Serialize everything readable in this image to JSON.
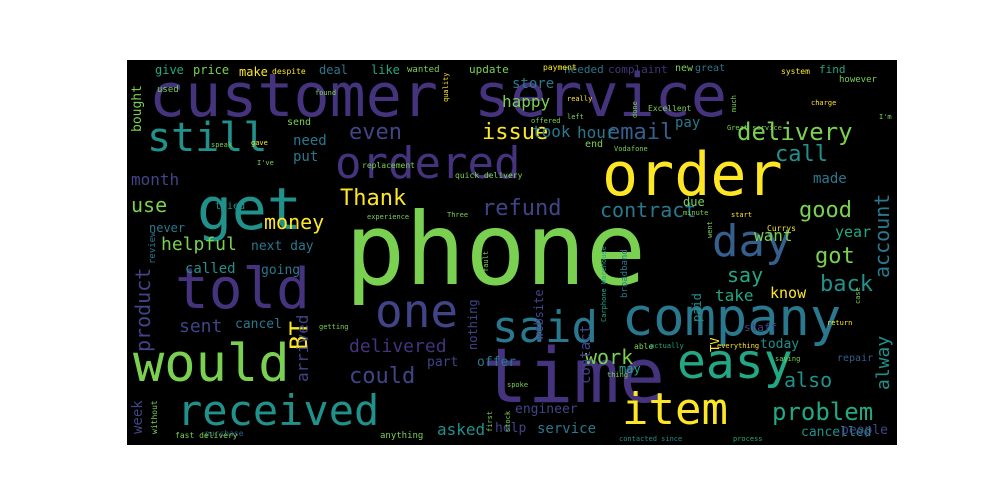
{
  "colors": {
    "background": "#000000",
    "page": "#ffffff",
    "purple": "#46337e",
    "indigo": "#414487",
    "blue": "#355f8d",
    "teal": "#2a788e",
    "green_teal": "#21918c",
    "green": "#22a884",
    "light_green": "#44bf70",
    "lime": "#7ad151",
    "yellow": "#fde725"
  },
  "words": {
    "customer_service": "customer service",
    "phone": "phone",
    "time": "time",
    "order": "order",
    "ordered": "ordered",
    "would": "would",
    "told": "told",
    "company": "company",
    "get": "get",
    "still": "still",
    "received": "received",
    "said": "said",
    "easy": "easy",
    "item": "item",
    "one": "one",
    "day": "day",
    "delivery": "delivery",
    "problem": "problem",
    "email": "email",
    "issue": "issue",
    "even": "even",
    "call": "call",
    "good": "good",
    "got": "got",
    "back": "back",
    "also": "also",
    "refund": "refund",
    "contract": "contract",
    "money": "money",
    "Thank": "Thank",
    "use": "use",
    "month": "month",
    "helpful": "helpful",
    "next_day": "next day",
    "product": "product",
    "sent": "sent",
    "BT": "BT",
    "delivered": "delivered",
    "could": "could",
    "work": "work",
    "say": "say",
    "asked": "asked",
    "service": "service",
    "help": "help",
    "hour": "hour",
    "took": "took",
    "store": "store",
    "happy": "happy",
    "account": "account",
    "want": "want",
    "made": "made",
    "year": "year",
    "take": "take",
    "know": "know",
    "cancelled": "cancelled",
    "people": "people",
    "week": "week",
    "arrived": "arrived",
    "contact": "contact",
    "website": "website",
    "called": "called",
    "going": "going",
    "cancel": "cancel",
    "part": "part",
    "offer": "offer",
    "engineer": "engineer",
    "need": "need",
    "put": "put",
    "pay": "pay",
    "always": "alway",
    "today": "today",
    "TV": "TV",
    "bought": "bought",
    "give": "give",
    "price": "price",
    "make": "make",
    "deal": "deal",
    "like": "like",
    "update": "update",
    "needed": "needed",
    "complaint": "complaint",
    "new": "new",
    "great": "great",
    "find": "find",
    "however": "however",
    "never": "never",
    "review": "review",
    "tried": "tried",
    "send": "send",
    "end": "end",
    "due": "due",
    "paid": "paid",
    "may": "may",
    "nothing": "nothing",
    "staff": "staff",
    "repair": "repair",
    "broadband": "broadband",
    "Excellent": "Excellent",
    "replacement": "replacement",
    "quick_delivery": "quick delivery",
    "purchase": "purchase",
    "fast_delivery": "fast delivery",
    "anything": "anything",
    "wanted": "wanted",
    "payment": "payment",
    "used": "used",
    "really": "really",
    "despite": "despite",
    "system": "system",
    "charge": "charge",
    "experience": "experience",
    "Currys": "Currys",
    "minute": "minute",
    "start": "start",
    "Great_service": "Great service",
    "Vodafone": "Vodafone",
    "without": "without",
    "first": "first",
    "quality": "quality",
    "spoke": "spoke",
    "told_me": "told me",
    "able": "able",
    "actually": "actually",
    "everything": "everything",
    "saying": "saying",
    "return": "return",
    "done": "done",
    "much": "much",
    "went": "went",
    "case": "case",
    "thing": "thing",
    "fault": "fault",
    "left": "left",
    "stock": "stock",
    "getting": "getting",
    "sale": "sale",
    "another": "another",
    "item_arrived": "item arrived",
    "received_item": "received item",
    "line": "line",
    "number": "number",
    "old": "old",
    "card": "card",
    "shop": "shop",
    "Three": "Three",
    "let": "let",
    "bill": "bill",
    "see": "see",
    "go": "go",
    "sure": "sure",
    "back_phone": "back phone",
    "ordered_phone": "ordered phone",
    "customer_care": "customer care",
    "manager": "manager",
    "team": "team",
    "mobile": "mobile",
    "check": "check",
    "speak": "speak",
    "gave": "gave",
    "found": "found",
    "I_ve": "I've",
    "I_m": "I'm",
    "sorted": "sorted",
    "contacted_since": "contacted since",
    "reply": "reply",
    "now": "now",
    "process": "process",
    "problem_item": "problem item",
    "delivery_time": "delivery time",
    "service_quick": "service quick",
    "Currys_PC": "Currys PC",
    "Carphone_Warehouse": "Carphone Warehouse",
    "price_match": "price match",
    "home": "home",
    "came": "came",
    "day_later": "day later",
    "Sky": "Sky"
  }
}
